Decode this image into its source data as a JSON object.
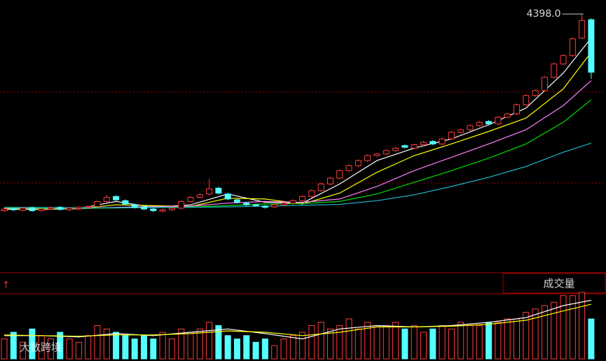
{
  "chart_data": [
    {
      "type": "candlestick",
      "up_color": "#ff3c3c",
      "down_color": "#54ffff",
      "ylim": [
        1330,
        4566
      ],
      "open": [
        2040,
        2065,
        2045,
        2075,
        2040,
        2060,
        2080,
        2050,
        2065,
        2080,
        2090,
        2150,
        2210,
        2160,
        2110,
        2085,
        2060,
        2035,
        2050,
        2070,
        2150,
        2200,
        2240,
        2310,
        2240,
        2170,
        2130,
        2110,
        2095,
        2085,
        2110,
        2130,
        2160,
        2210,
        2280,
        2360,
        2430,
        2520,
        2580,
        2640,
        2700,
        2720,
        2760,
        2820,
        2790,
        2830,
        2870,
        2840,
        2900,
        2980,
        3010,
        3060,
        3110,
        3080,
        3160,
        3200,
        3310,
        3420,
        3480,
        3640,
        3800,
        3900,
        4110,
        4330
      ],
      "close": [
        2060,
        2050,
        2070,
        2040,
        2060,
        2075,
        2055,
        2070,
        2080,
        2090,
        2150,
        2200,
        2170,
        2120,
        2080,
        2060,
        2040,
        2050,
        2070,
        2150,
        2200,
        2230,
        2300,
        2250,
        2180,
        2140,
        2110,
        2100,
        2080,
        2110,
        2130,
        2160,
        2210,
        2280,
        2360,
        2430,
        2520,
        2580,
        2640,
        2700,
        2720,
        2760,
        2790,
        2800,
        2830,
        2860,
        2840,
        2900,
        2980,
        3010,
        3060,
        3100,
        3080,
        3160,
        3200,
        3310,
        3420,
        3480,
        3640,
        3800,
        3900,
        4100,
        4320,
        3700
      ],
      "high": [
        2075,
        2080,
        2085,
        2090,
        2075,
        2090,
        2095,
        2085,
        2095,
        2105,
        2165,
        2230,
        2225,
        2175,
        2125,
        2100,
        2075,
        2065,
        2085,
        2165,
        2215,
        2250,
        2420,
        2325,
        2255,
        2185,
        2145,
        2125,
        2110,
        2125,
        2145,
        2175,
        2225,
        2295,
        2375,
        2445,
        2535,
        2595,
        2655,
        2715,
        2735,
        2775,
        2805,
        2835,
        2845,
        2875,
        2885,
        2915,
        2995,
        3025,
        3075,
        3115,
        3125,
        3175,
        3215,
        3325,
        3435,
        3495,
        3655,
        3815,
        3915,
        4115,
        4398.0,
        4345
      ],
      "low": [
        2025,
        2035,
        2030,
        2025,
        2025,
        2045,
        2040,
        2035,
        2050,
        2065,
        2075,
        2135,
        2155,
        2105,
        2065,
        2045,
        2020,
        2020,
        2035,
        2055,
        2135,
        2185,
        2225,
        2235,
        2165,
        2125,
        2095,
        2085,
        2065,
        2070,
        2095,
        2115,
        2145,
        2195,
        2265,
        2345,
        2415,
        2505,
        2565,
        2625,
        2685,
        2705,
        2745,
        2785,
        2775,
        2815,
        2825,
        2825,
        2885,
        2965,
        2995,
        3045,
        3065,
        3065,
        3145,
        3185,
        3295,
        3405,
        3465,
        3625,
        3785,
        3885,
        4095,
        3620
      ],
      "max_label": "4398.0",
      "lines": [
        {
          "color": "#ffffff",
          "x": [
            0,
            4,
            8,
            12,
            16,
            20,
            24,
            28,
            32,
            36,
            40,
            44,
            48,
            52,
            56,
            60,
            63
          ],
          "values": [
            2055,
            2055,
            2065,
            2150,
            2080,
            2110,
            2240,
            2140,
            2130,
            2360,
            2640,
            2790,
            2900,
            3070,
            3270,
            3690,
            4110
          ]
        },
        {
          "color": "#ffff00",
          "x": [
            0,
            4,
            8,
            12,
            16,
            20,
            24,
            28,
            32,
            36,
            40,
            44,
            48,
            52,
            56,
            60,
            63
          ],
          "values": [
            2060,
            2058,
            2062,
            2110,
            2100,
            2090,
            2190,
            2180,
            2120,
            2250,
            2500,
            2700,
            2840,
            2990,
            3150,
            3500,
            3940
          ]
        },
        {
          "color": "#ff80ff",
          "x": [
            0,
            4,
            8,
            12,
            16,
            20,
            24,
            28,
            32,
            36,
            40,
            44,
            48,
            52,
            56,
            60,
            63
          ],
          "values": [
            2070,
            2065,
            2063,
            2080,
            2090,
            2095,
            2130,
            2150,
            2140,
            2180,
            2330,
            2520,
            2680,
            2840,
            3010,
            3300,
            3600
          ]
        },
        {
          "color": "#00e000",
          "x": [
            0,
            4,
            8,
            12,
            16,
            20,
            24,
            28,
            32,
            36,
            40,
            44,
            48,
            52,
            56,
            60,
            63
          ],
          "values": [
            2075,
            2070,
            2068,
            2072,
            2080,
            2085,
            2100,
            2120,
            2125,
            2150,
            2240,
            2380,
            2520,
            2670,
            2840,
            3100,
            3370
          ]
        },
        {
          "color": "#20b4c8",
          "x": [
            0,
            4,
            8,
            12,
            16,
            20,
            24,
            28,
            32,
            36,
            40,
            44,
            48,
            52,
            56,
            60,
            63
          ],
          "values": [
            2080,
            2078,
            2075,
            2075,
            2078,
            2080,
            2085,
            2095,
            2105,
            2115,
            2160,
            2230,
            2330,
            2440,
            2570,
            2740,
            2850
          ]
        }
      ]
    },
    {
      "type": "volume",
      "title": "成交量",
      "watermark": "大数跨境",
      "ylim": [
        0,
        100
      ],
      "values": [
        30,
        40,
        25,
        45,
        35,
        30,
        40,
        30,
        25,
        35,
        50,
        45,
        40,
        35,
        30,
        35,
        30,
        40,
        30,
        45,
        40,
        45,
        55,
        50,
        35,
        30,
        35,
        25,
        30,
        20,
        30,
        35,
        40,
        50,
        55,
        45,
        50,
        60,
        45,
        55,
        50,
        50,
        55,
        45,
        50,
        40,
        45,
        50,
        45,
        55,
        50,
        50,
        55,
        55,
        60,
        60,
        70,
        75,
        80,
        85,
        95,
        95,
        100,
        60
      ],
      "lines": [
        {
          "color": "#ffffff",
          "x": [
            0,
            4,
            8,
            12,
            16,
            20,
            24,
            28,
            32,
            36,
            40,
            44,
            48,
            52,
            56,
            60,
            63
          ],
          "values": [
            35,
            35,
            33,
            38,
            35,
            40,
            45,
            38,
            30,
            45,
            50,
            48,
            50,
            55,
            62,
            80,
            88
          ]
        },
        {
          "color": "#ffff00",
          "x": [
            0,
            4,
            8,
            12,
            16,
            20,
            24,
            28,
            32,
            36,
            40,
            44,
            48,
            52,
            56,
            60,
            63
          ],
          "values": [
            36,
            35,
            34,
            36,
            36,
            38,
            42,
            40,
            35,
            40,
            48,
            48,
            49,
            52,
            58,
            72,
            82
          ]
        }
      ]
    }
  ]
}
